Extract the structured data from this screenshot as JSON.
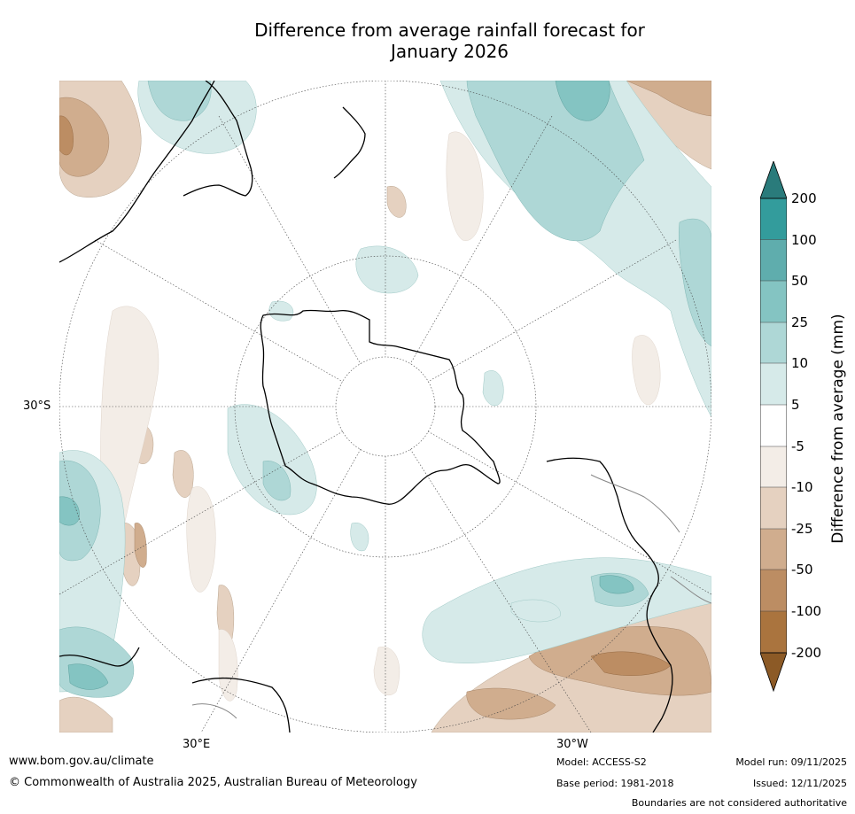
{
  "title_line1": "Difference from average rainfall forecast for",
  "title_line2": "January 2026",
  "map": {
    "projection": "south-polar-stereographic",
    "lat_label": "30°S",
    "lon_labels": [
      "30°E",
      "30°W"
    ]
  },
  "colorbar": {
    "title": "Difference from average (mm)",
    "ticks": [
      "200",
      "100",
      "50",
      "25",
      "10",
      "5",
      "-5",
      "-10",
      "-25",
      "-50",
      "-100",
      "-200"
    ],
    "colors": [
      "#2a7b7b",
      "#339c9c",
      "#5fadad",
      "#84c4c2",
      "#aed7d6",
      "#d6eae9",
      "#ffffff",
      "#f3ede7",
      "#e5d1c0",
      "#d0ad8e",
      "#bc8d63",
      "#aa743e",
      "#8c5a26"
    ]
  },
  "footer": {
    "website": "www.bom.gov.au/climate",
    "copyright": "© Commonwealth of Australia 2025, Australian Bureau of Meteorology",
    "model": "Model: ACCESS-S2",
    "base_period": "Base period: 1981-2018",
    "model_run": "Model run: 09/11/2025",
    "issued": "Issued: 12/11/2025",
    "disclaimer": "Boundaries are not considered authoritative"
  }
}
